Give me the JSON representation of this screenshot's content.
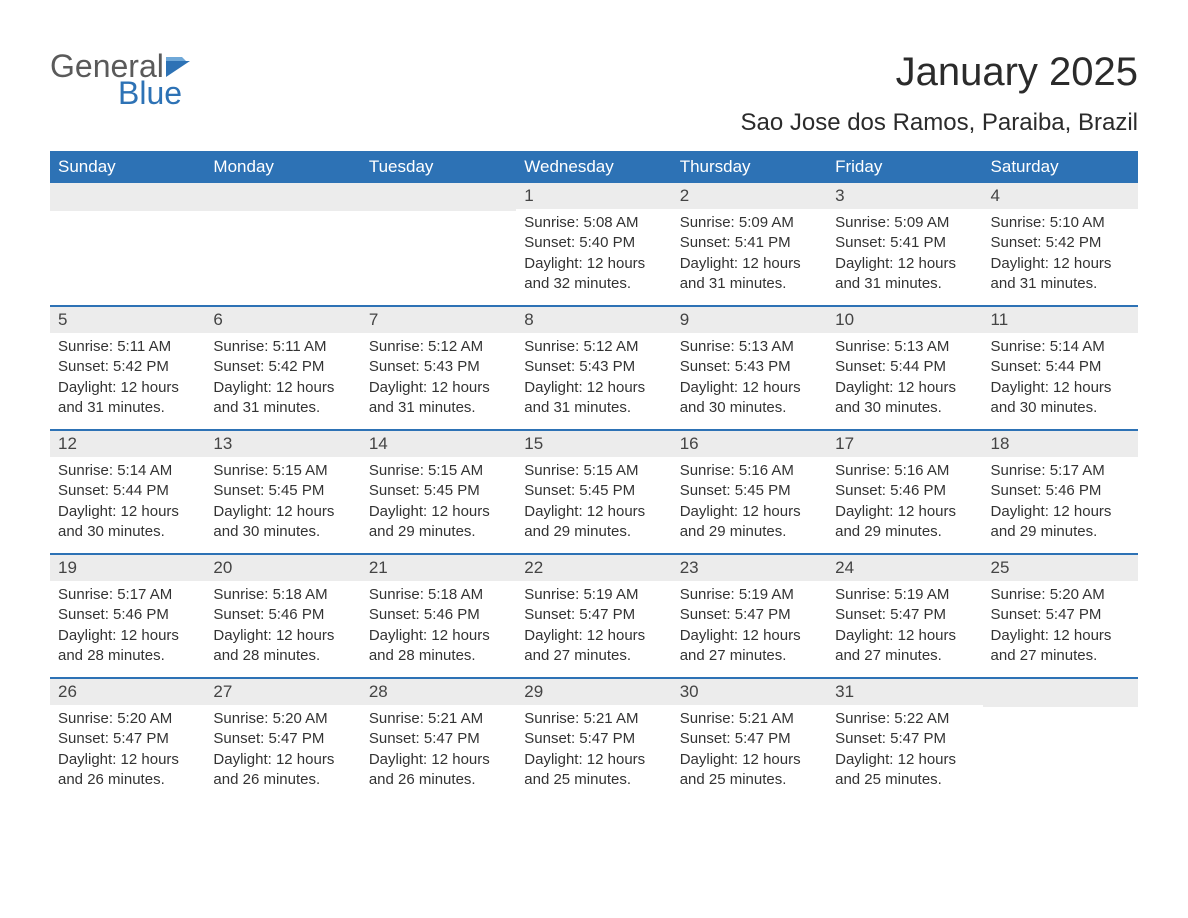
{
  "logo": {
    "part1": "General",
    "part2": "Blue"
  },
  "title": "January 2025",
  "location": "Sao Jose dos Ramos, Paraiba, Brazil",
  "colors": {
    "header_bg": "#2d72b5",
    "header_text": "#ffffff",
    "daynum_bg": "#ececec",
    "row_border": "#2d72b5",
    "text": "#333333",
    "logo_gray": "#5a5a5a",
    "logo_blue": "#2d72b5"
  },
  "weekdays": [
    "Sunday",
    "Monday",
    "Tuesday",
    "Wednesday",
    "Thursday",
    "Friday",
    "Saturday"
  ],
  "weeks": [
    [
      {
        "blank": true
      },
      {
        "blank": true
      },
      {
        "blank": true
      },
      {
        "day": "1",
        "sunrise": "Sunrise: 5:08 AM",
        "sunset": "Sunset: 5:40 PM",
        "daylight1": "Daylight: 12 hours",
        "daylight2": "and 32 minutes."
      },
      {
        "day": "2",
        "sunrise": "Sunrise: 5:09 AM",
        "sunset": "Sunset: 5:41 PM",
        "daylight1": "Daylight: 12 hours",
        "daylight2": "and 31 minutes."
      },
      {
        "day": "3",
        "sunrise": "Sunrise: 5:09 AM",
        "sunset": "Sunset: 5:41 PM",
        "daylight1": "Daylight: 12 hours",
        "daylight2": "and 31 minutes."
      },
      {
        "day": "4",
        "sunrise": "Sunrise: 5:10 AM",
        "sunset": "Sunset: 5:42 PM",
        "daylight1": "Daylight: 12 hours",
        "daylight2": "and 31 minutes."
      }
    ],
    [
      {
        "day": "5",
        "sunrise": "Sunrise: 5:11 AM",
        "sunset": "Sunset: 5:42 PM",
        "daylight1": "Daylight: 12 hours",
        "daylight2": "and 31 minutes."
      },
      {
        "day": "6",
        "sunrise": "Sunrise: 5:11 AM",
        "sunset": "Sunset: 5:42 PM",
        "daylight1": "Daylight: 12 hours",
        "daylight2": "and 31 minutes."
      },
      {
        "day": "7",
        "sunrise": "Sunrise: 5:12 AM",
        "sunset": "Sunset: 5:43 PM",
        "daylight1": "Daylight: 12 hours",
        "daylight2": "and 31 minutes."
      },
      {
        "day": "8",
        "sunrise": "Sunrise: 5:12 AM",
        "sunset": "Sunset: 5:43 PM",
        "daylight1": "Daylight: 12 hours",
        "daylight2": "and 31 minutes."
      },
      {
        "day": "9",
        "sunrise": "Sunrise: 5:13 AM",
        "sunset": "Sunset: 5:43 PM",
        "daylight1": "Daylight: 12 hours",
        "daylight2": "and 30 minutes."
      },
      {
        "day": "10",
        "sunrise": "Sunrise: 5:13 AM",
        "sunset": "Sunset: 5:44 PM",
        "daylight1": "Daylight: 12 hours",
        "daylight2": "and 30 minutes."
      },
      {
        "day": "11",
        "sunrise": "Sunrise: 5:14 AM",
        "sunset": "Sunset: 5:44 PM",
        "daylight1": "Daylight: 12 hours",
        "daylight2": "and 30 minutes."
      }
    ],
    [
      {
        "day": "12",
        "sunrise": "Sunrise: 5:14 AM",
        "sunset": "Sunset: 5:44 PM",
        "daylight1": "Daylight: 12 hours",
        "daylight2": "and 30 minutes."
      },
      {
        "day": "13",
        "sunrise": "Sunrise: 5:15 AM",
        "sunset": "Sunset: 5:45 PM",
        "daylight1": "Daylight: 12 hours",
        "daylight2": "and 30 minutes."
      },
      {
        "day": "14",
        "sunrise": "Sunrise: 5:15 AM",
        "sunset": "Sunset: 5:45 PM",
        "daylight1": "Daylight: 12 hours",
        "daylight2": "and 29 minutes."
      },
      {
        "day": "15",
        "sunrise": "Sunrise: 5:15 AM",
        "sunset": "Sunset: 5:45 PM",
        "daylight1": "Daylight: 12 hours",
        "daylight2": "and 29 minutes."
      },
      {
        "day": "16",
        "sunrise": "Sunrise: 5:16 AM",
        "sunset": "Sunset: 5:45 PM",
        "daylight1": "Daylight: 12 hours",
        "daylight2": "and 29 minutes."
      },
      {
        "day": "17",
        "sunrise": "Sunrise: 5:16 AM",
        "sunset": "Sunset: 5:46 PM",
        "daylight1": "Daylight: 12 hours",
        "daylight2": "and 29 minutes."
      },
      {
        "day": "18",
        "sunrise": "Sunrise: 5:17 AM",
        "sunset": "Sunset: 5:46 PM",
        "daylight1": "Daylight: 12 hours",
        "daylight2": "and 29 minutes."
      }
    ],
    [
      {
        "day": "19",
        "sunrise": "Sunrise: 5:17 AM",
        "sunset": "Sunset: 5:46 PM",
        "daylight1": "Daylight: 12 hours",
        "daylight2": "and 28 minutes."
      },
      {
        "day": "20",
        "sunrise": "Sunrise: 5:18 AM",
        "sunset": "Sunset: 5:46 PM",
        "daylight1": "Daylight: 12 hours",
        "daylight2": "and 28 minutes."
      },
      {
        "day": "21",
        "sunrise": "Sunrise: 5:18 AM",
        "sunset": "Sunset: 5:46 PM",
        "daylight1": "Daylight: 12 hours",
        "daylight2": "and 28 minutes."
      },
      {
        "day": "22",
        "sunrise": "Sunrise: 5:19 AM",
        "sunset": "Sunset: 5:47 PM",
        "daylight1": "Daylight: 12 hours",
        "daylight2": "and 27 minutes."
      },
      {
        "day": "23",
        "sunrise": "Sunrise: 5:19 AM",
        "sunset": "Sunset: 5:47 PM",
        "daylight1": "Daylight: 12 hours",
        "daylight2": "and 27 minutes."
      },
      {
        "day": "24",
        "sunrise": "Sunrise: 5:19 AM",
        "sunset": "Sunset: 5:47 PM",
        "daylight1": "Daylight: 12 hours",
        "daylight2": "and 27 minutes."
      },
      {
        "day": "25",
        "sunrise": "Sunrise: 5:20 AM",
        "sunset": "Sunset: 5:47 PM",
        "daylight1": "Daylight: 12 hours",
        "daylight2": "and 27 minutes."
      }
    ],
    [
      {
        "day": "26",
        "sunrise": "Sunrise: 5:20 AM",
        "sunset": "Sunset: 5:47 PM",
        "daylight1": "Daylight: 12 hours",
        "daylight2": "and 26 minutes."
      },
      {
        "day": "27",
        "sunrise": "Sunrise: 5:20 AM",
        "sunset": "Sunset: 5:47 PM",
        "daylight1": "Daylight: 12 hours",
        "daylight2": "and 26 minutes."
      },
      {
        "day": "28",
        "sunrise": "Sunrise: 5:21 AM",
        "sunset": "Sunset: 5:47 PM",
        "daylight1": "Daylight: 12 hours",
        "daylight2": "and 26 minutes."
      },
      {
        "day": "29",
        "sunrise": "Sunrise: 5:21 AM",
        "sunset": "Sunset: 5:47 PM",
        "daylight1": "Daylight: 12 hours",
        "daylight2": "and 25 minutes."
      },
      {
        "day": "30",
        "sunrise": "Sunrise: 5:21 AM",
        "sunset": "Sunset: 5:47 PM",
        "daylight1": "Daylight: 12 hours",
        "daylight2": "and 25 minutes."
      },
      {
        "day": "31",
        "sunrise": "Sunrise: 5:22 AM",
        "sunset": "Sunset: 5:47 PM",
        "daylight1": "Daylight: 12 hours",
        "daylight2": "and 25 minutes."
      },
      {
        "blank": true
      }
    ]
  ]
}
